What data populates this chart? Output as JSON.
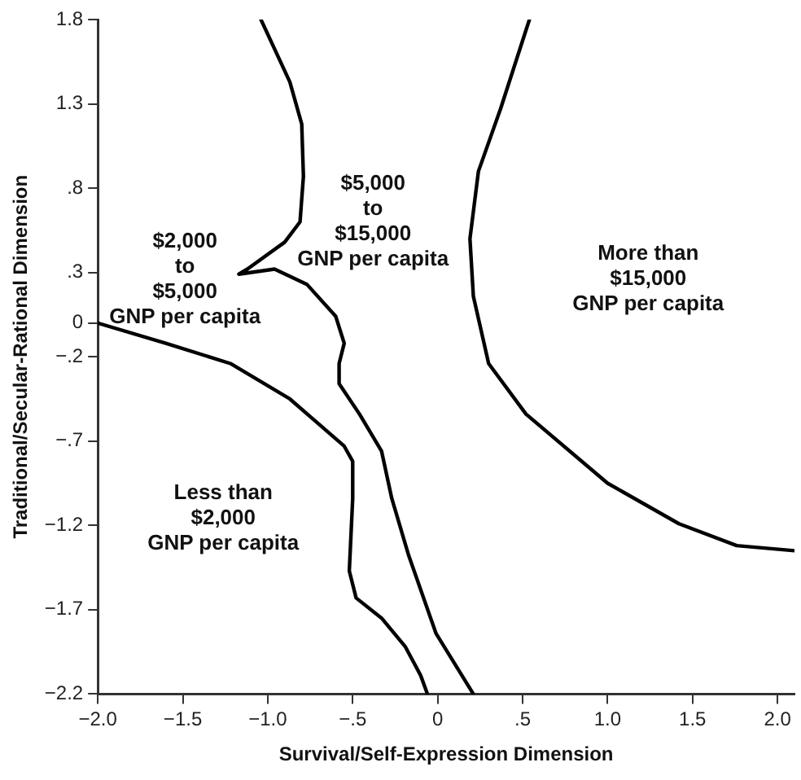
{
  "chart_data": {
    "type": "line",
    "xlabel": "Survival/Self-Expression Dimension",
    "ylabel": "Traditional/Secular-Rational Dimension",
    "xlim": [
      -2.0,
      2.1
    ],
    "ylim": [
      -2.2,
      1.8
    ],
    "xticks": [
      {
        "value": -2.0,
        "label": "−2.0"
      },
      {
        "value": -1.5,
        "label": "−1.5"
      },
      {
        "value": -1.0,
        "label": "−1.0"
      },
      {
        "value": -0.5,
        "label": "−.5"
      },
      0,
      {
        "value": 0.5,
        "label": ".5"
      },
      {
        "value": 1.0,
        "label": "1.0"
      },
      {
        "value": 1.5,
        "label": "1.5"
      },
      {
        "value": 2.0,
        "label": "2.0"
      }
    ],
    "yticks": [
      {
        "value": -2.2,
        "label": "−2.2"
      },
      {
        "value": -1.7,
        "label": "−1.7"
      },
      {
        "value": -1.2,
        "label": "−1.2"
      },
      {
        "value": -0.7,
        "label": "−.7"
      },
      {
        "value": -0.2,
        "label": "−.2"
      },
      0,
      {
        "value": 0.3,
        "label": ".3"
      },
      {
        "value": 0.8,
        "label": ".8"
      },
      {
        "value": 1.3,
        "label": "1.3"
      },
      {
        "value": 1.8,
        "label": "1.8"
      }
    ],
    "grid": false,
    "legend": false,
    "marker": "none",
    "line_style": "solid",
    "series": [
      {
        "color": "#000000",
        "x": [
          -2.0,
          -1.6,
          -1.22,
          -0.87,
          -0.55,
          -0.5,
          -0.5,
          -0.52,
          -0.48,
          -0.33,
          -0.19,
          -0.1,
          -0.06
        ],
        "values": [
          0.0,
          -0.12,
          -0.24,
          -0.45,
          -0.73,
          -0.82,
          -1.04,
          -1.47,
          -1.63,
          -1.75,
          -1.92,
          -2.09,
          -2.2
        ]
      },
      {
        "color": "#000000",
        "x": [
          -1.04,
          -0.87,
          -0.8,
          -0.79,
          -0.81,
          -0.9,
          -1.12,
          -1.17,
          -0.96,
          -0.77,
          -0.6,
          -0.55,
          -0.58,
          -0.58,
          -0.46,
          -0.33,
          -0.27,
          -0.17,
          -0.01,
          0.21
        ],
        "values": [
          1.8,
          1.43,
          1.18,
          0.87,
          0.6,
          0.48,
          0.32,
          0.29,
          0.32,
          0.23,
          0.04,
          -0.12,
          -0.24,
          -0.36,
          -0.54,
          -0.76,
          -1.04,
          -1.38,
          -1.84,
          -2.2
        ]
      },
      {
        "color": "#000000",
        "x": [
          0.54,
          0.37,
          0.24,
          0.19,
          0.21,
          0.3,
          0.52,
          1.0,
          1.42,
          1.76,
          2.1
        ],
        "values": [
          1.8,
          1.27,
          0.9,
          0.5,
          0.16,
          -0.24,
          -0.54,
          -0.95,
          -1.19,
          -1.32,
          -1.35
        ]
      }
    ],
    "annotations": [
      "$2,000\nto\n$5,000\nGNP per capita",
      "$5,000\nto\n$15,000\nGNP per capita",
      "More than\n$15,000\nGNP per capita",
      "Less than\n$2,000\nGNP per capita"
    ]
  }
}
